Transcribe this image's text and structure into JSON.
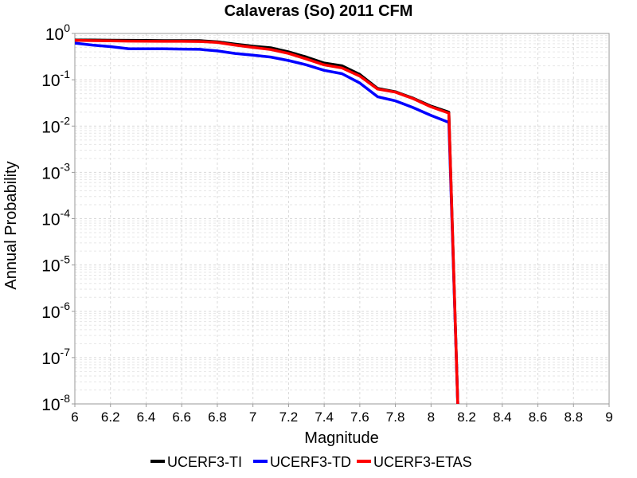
{
  "chart_data": {
    "type": "line",
    "title": "Calaveras (So) 2011 CFM",
    "xlabel": "Magnitude",
    "ylabel": "Annual Probability",
    "xlim": [
      6,
      9
    ],
    "ylim": [
      1e-08,
      1
    ],
    "yscale": "log",
    "grid": true,
    "legend_position": "bottom",
    "x_ticks": [
      "6",
      "6.2",
      "6.4",
      "6.6",
      "6.8",
      "7",
      "7.2",
      "7.4",
      "7.6",
      "7.8",
      "8",
      "8.2",
      "8.4",
      "8.6",
      "8.8",
      "9"
    ],
    "y_ticks": [
      {
        "base": "10",
        "exp": "0",
        "value": 1
      },
      {
        "base": "10",
        "exp": "-1",
        "value": 0.1
      },
      {
        "base": "10",
        "exp": "-2",
        "value": 0.01
      },
      {
        "base": "10",
        "exp": "-3",
        "value": 0.001
      },
      {
        "base": "10",
        "exp": "-4",
        "value": 0.0001
      },
      {
        "base": "10",
        "exp": "-5",
        "value": 1e-05
      },
      {
        "base": "10",
        "exp": "-6",
        "value": 1e-06
      },
      {
        "base": "10",
        "exp": "-7",
        "value": 1e-07
      },
      {
        "base": "10",
        "exp": "-8",
        "value": 1e-08
      }
    ],
    "series": [
      {
        "name": "UCERF3-TI",
        "color": "#000000",
        "x": [
          6.0,
          6.1,
          6.2,
          6.3,
          6.4,
          6.5,
          6.6,
          6.7,
          6.8,
          6.9,
          7.0,
          7.1,
          7.2,
          7.3,
          7.4,
          7.5,
          7.6,
          7.7,
          7.8,
          7.9,
          8.0,
          8.1,
          8.15
        ],
        "y": [
          0.72,
          0.72,
          0.715,
          0.71,
          0.705,
          0.7,
          0.7,
          0.7,
          0.66,
          0.59,
          0.53,
          0.49,
          0.4,
          0.31,
          0.23,
          0.2,
          0.13,
          0.065,
          0.055,
          0.04,
          0.027,
          0.02,
          1e-08
        ]
      },
      {
        "name": "UCERF3-TD",
        "color": "#0000ff",
        "x": [
          6.0,
          6.1,
          6.2,
          6.3,
          6.4,
          6.5,
          6.6,
          6.7,
          6.8,
          6.9,
          7.0,
          7.1,
          7.2,
          7.3,
          7.4,
          7.5,
          7.6,
          7.7,
          7.8,
          7.9,
          8.0,
          8.1,
          8.15
        ],
        "y": [
          0.62,
          0.56,
          0.52,
          0.47,
          0.465,
          0.465,
          0.46,
          0.455,
          0.42,
          0.37,
          0.34,
          0.31,
          0.26,
          0.21,
          0.16,
          0.135,
          0.085,
          0.043,
          0.035,
          0.025,
          0.017,
          0.012,
          1e-08
        ]
      },
      {
        "name": "UCERF3-ETAS",
        "color": "#ff0000",
        "x": [
          6.0,
          6.1,
          6.2,
          6.3,
          6.4,
          6.5,
          6.6,
          6.7,
          6.8,
          6.9,
          7.0,
          7.1,
          7.2,
          7.3,
          7.4,
          7.5,
          7.6,
          7.7,
          7.8,
          7.9,
          8.0,
          8.1,
          8.15
        ],
        "y": [
          0.71,
          0.7,
          0.695,
          0.685,
          0.68,
          0.675,
          0.675,
          0.67,
          0.64,
          0.56,
          0.5,
          0.45,
          0.37,
          0.28,
          0.21,
          0.18,
          0.12,
          0.063,
          0.054,
          0.039,
          0.026,
          0.019,
          1e-08
        ]
      }
    ]
  }
}
